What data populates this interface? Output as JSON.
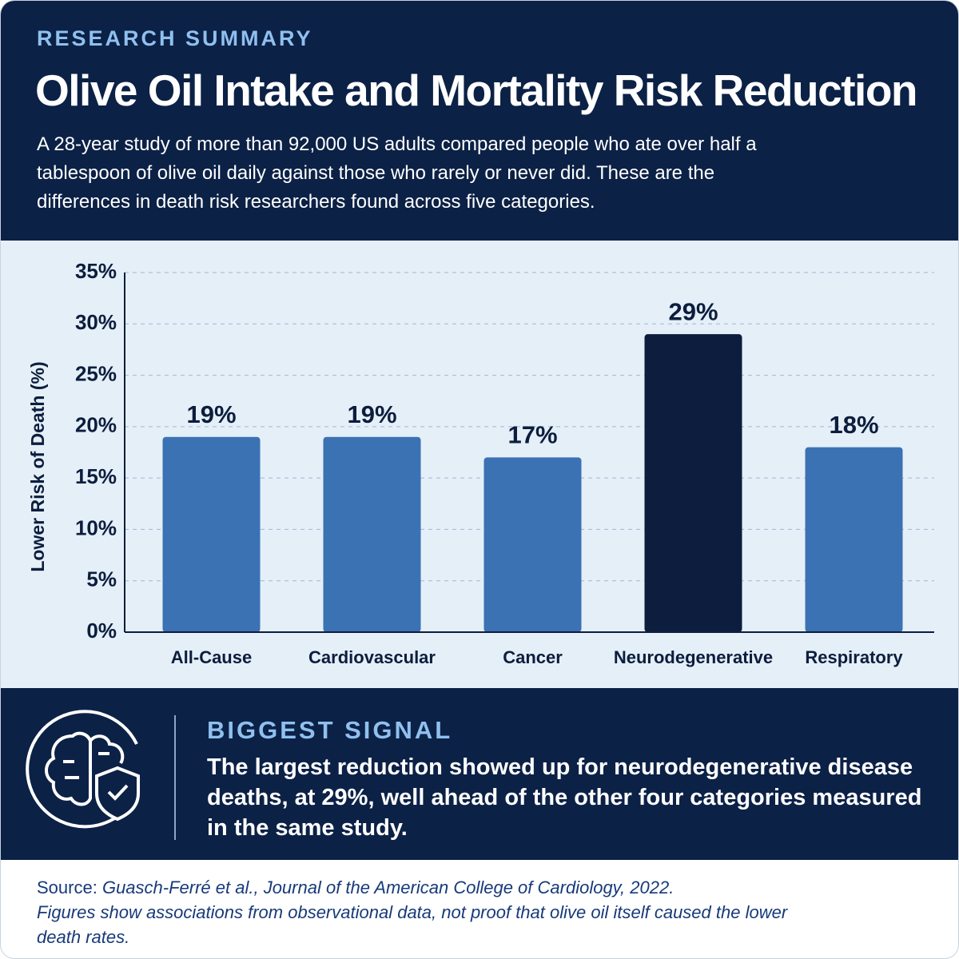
{
  "header": {
    "kicker": "RESEARCH SUMMARY",
    "title": "Olive Oil Intake and Mortality Risk Reduction",
    "description": "A 28-year study of more than 92,000 US adults compared people who ate over half a tablespoon of olive oil daily against those who rarely or never did. These are the differences in death risk researchers found across five categories."
  },
  "chart_data": {
    "type": "bar",
    "y_label": "Lower Risk of Death (%)",
    "categories": [
      "All-Cause",
      "Cardiovascular",
      "Cancer",
      "Neurodegenerative",
      "Respiratory"
    ],
    "values": [
      19,
      19,
      17,
      29,
      18
    ],
    "value_labels": [
      "19%",
      "19%",
      "17%",
      "29%",
      "18%"
    ],
    "colors": [
      "#3a72b3",
      "#3a72b3",
      "#3a72b3",
      "#0c1d3d",
      "#3a72b3"
    ],
    "ylim": [
      0,
      35
    ],
    "yticks": [
      {
        "value": 0,
        "label": "0%"
      },
      {
        "value": 5,
        "label": "5%"
      },
      {
        "value": 10,
        "label": "10%"
      },
      {
        "value": 15,
        "label": "15%"
      },
      {
        "value": 20,
        "label": "20%"
      },
      {
        "value": 25,
        "label": "25%"
      },
      {
        "value": 30,
        "label": "30%"
      },
      {
        "value": 35,
        "label": "35%"
      }
    ],
    "grid": true
  },
  "callout": {
    "title": "BIGGEST SIGNAL",
    "text": "The largest reduction showed up for neurodegenerative disease deaths, at 29%, well ahead of the other four categories measured in the same study."
  },
  "footer": {
    "source_label": "Source:",
    "source": "Guasch-Ferré et al., Journal of the American College of Cardiology, 2022.",
    "note": "Figures show associations from observational data, not proof that olive oil itself caused the lower death rates."
  }
}
